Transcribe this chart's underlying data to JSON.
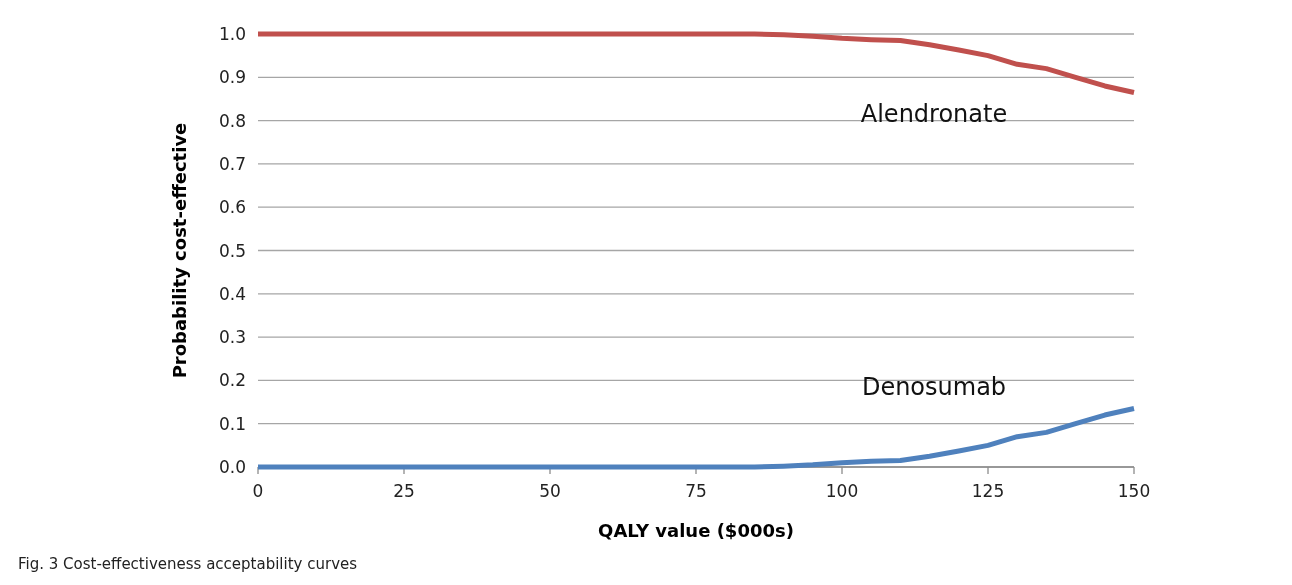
{
  "chart_data": {
    "type": "line",
    "xlabel": "QALY value ($000s)",
    "ylabel": "Probability cost-effective",
    "x": [
      0,
      25,
      50,
      75,
      85,
      90,
      95,
      100,
      105,
      110,
      115,
      120,
      125,
      130,
      135,
      140,
      145,
      150
    ],
    "series": [
      {
        "name": "Alendronate",
        "color": "#c0504d",
        "values": [
          1,
          1,
          1,
          1,
          1,
          0.998,
          0.995,
          0.99,
          0.987,
          0.985,
          0.975,
          0.963,
          0.95,
          0.93,
          0.92,
          0.9,
          0.88,
          0.865
        ]
      },
      {
        "name": "Denosumab",
        "color": "#4f81bd",
        "values": [
          0,
          0,
          0,
          0,
          0,
          0.002,
          0.005,
          0.01,
          0.013,
          0.015,
          0.025,
          0.037,
          0.05,
          0.07,
          0.08,
          0.1,
          0.12,
          0.135
        ]
      }
    ],
    "xlim": [
      0,
      150
    ],
    "xticks": [
      0,
      25,
      50,
      75,
      100,
      125,
      150
    ],
    "ylim": [
      0,
      1
    ],
    "yticks": [
      {
        "value": 0,
        "label": "0.0"
      },
      {
        "value": 0.1,
        "label": "0.1"
      },
      {
        "value": 0.2,
        "label": "0.2"
      },
      {
        "value": 0.3,
        "label": "0.3"
      },
      {
        "value": 0.4,
        "label": "0.4"
      },
      {
        "value": 0.5,
        "label": "0.5"
      },
      {
        "value": 0.6,
        "label": "0.6"
      },
      {
        "value": 0.7,
        "label": "0.7"
      },
      {
        "value": 0.8,
        "label": "0.8"
      },
      {
        "value": 0.9,
        "label": "0.9"
      },
      {
        "value": 1,
        "label": "1.0"
      }
    ],
    "grid": "y",
    "marker": "none",
    "line_style": "solid",
    "annotations": [
      "Fig. 3  Cost-effectiveness acceptability curves"
    ]
  }
}
